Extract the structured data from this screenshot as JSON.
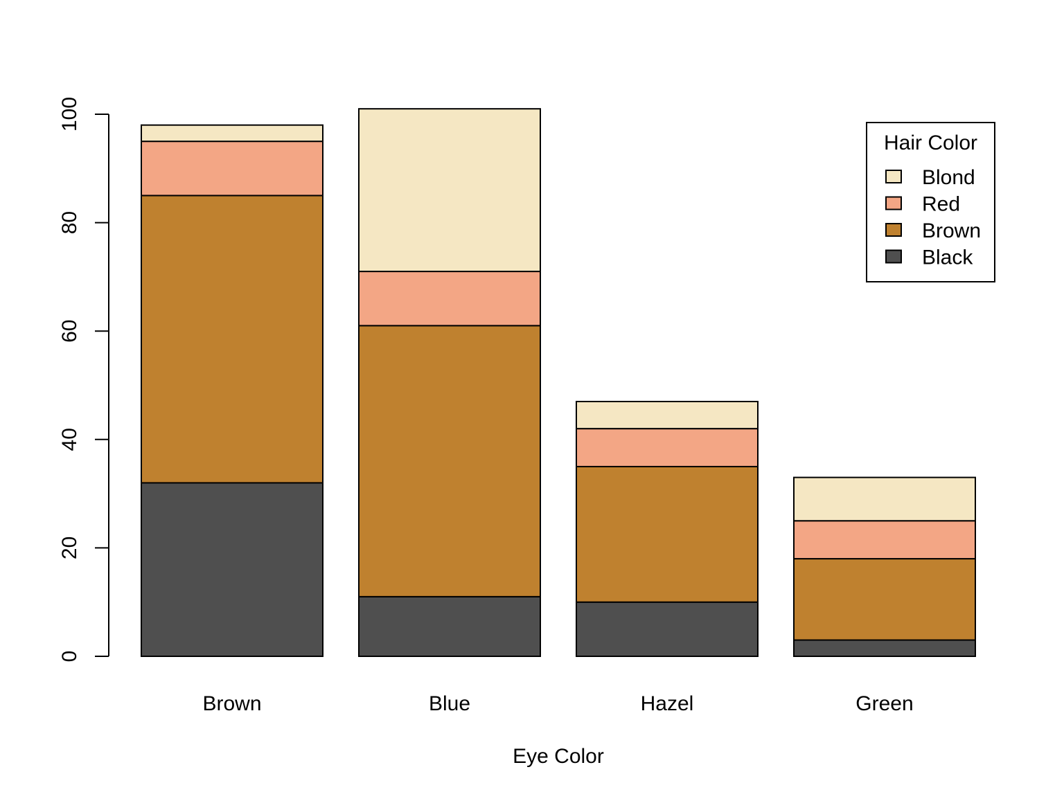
{
  "chart_data": {
    "type": "bar",
    "stacked": true,
    "title": "",
    "xlabel": "Eye Color",
    "ylabel": "",
    "ylim": [
      0,
      100
    ],
    "yticks": [
      0,
      20,
      40,
      60,
      80,
      100
    ],
    "categories": [
      "Brown",
      "Blue",
      "Hazel",
      "Green"
    ],
    "series": [
      {
        "name": "Black",
        "color": "#4f4f4f",
        "values": [
          32,
          11,
          10,
          3
        ]
      },
      {
        "name": "Brown",
        "color": "#bf812f",
        "values": [
          53,
          50,
          25,
          15
        ]
      },
      {
        "name": "Red",
        "color": "#f3a685",
        "values": [
          10,
          10,
          7,
          7
        ]
      },
      {
        "name": "Blond",
        "color": "#f5e7c3",
        "values": [
          3,
          30,
          5,
          8
        ]
      }
    ],
    "legend": {
      "title": "Hair Color",
      "placement": "top-right",
      "order": [
        "Blond",
        "Red",
        "Brown",
        "Black"
      ]
    },
    "grid": false
  }
}
